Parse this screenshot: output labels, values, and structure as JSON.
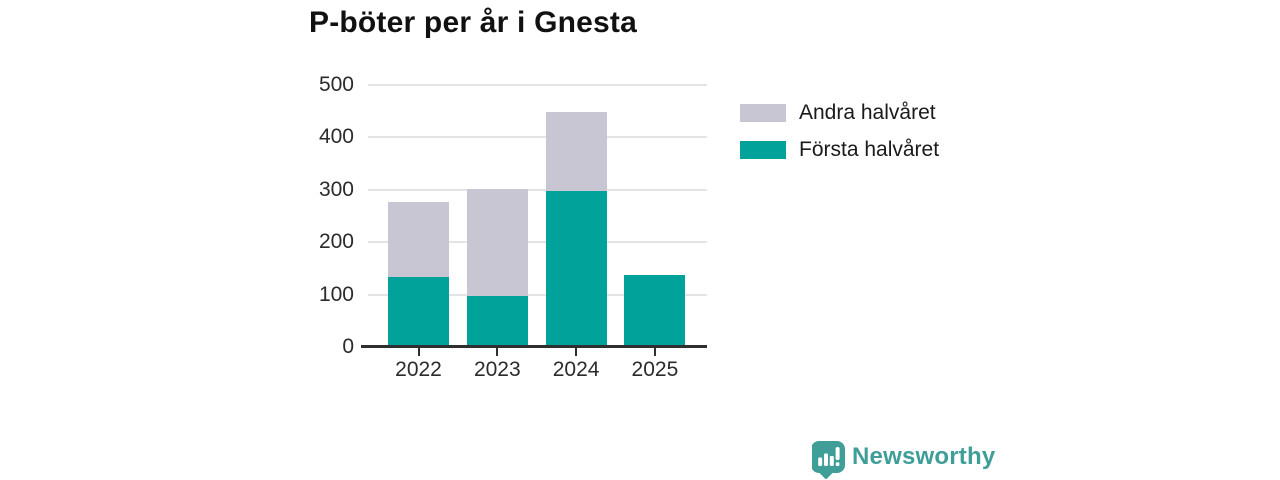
{
  "title": "P-böter per år i Gnesta",
  "chart_data": {
    "type": "bar",
    "stacked": true,
    "title": "P-böter per år i Gnesta",
    "categories": [
      "2022",
      "2023",
      "2024",
      "2025"
    ],
    "series": [
      {
        "name": "Första halvåret",
        "color": "#00a29a",
        "values": [
          130,
          93,
          294,
          133
        ]
      },
      {
        "name": "Andra halvåret",
        "color": "#c8c6d2",
        "values": [
          142,
          204,
          151,
          0
        ]
      }
    ],
    "xlabel": "",
    "ylabel": "",
    "ylim": [
      0,
      500
    ],
    "yticks": [
      0,
      100,
      200,
      300,
      400,
      500
    ],
    "grid": true,
    "legend_position": "right"
  },
  "legend": {
    "items": [
      {
        "label": "Andra halvåret",
        "color": "#c8c6d2",
        "icon": "legend-swatch-gray"
      },
      {
        "label": "Första halvåret",
        "color": "#00a29a",
        "icon": "legend-swatch-teal"
      }
    ]
  },
  "colors": {
    "first_half": "#00a29a",
    "second_half": "#c8c6d2",
    "gridline": "#e3e3e8",
    "axis": "#2f2f2f",
    "text": "#2b2b2b",
    "title": "#111111",
    "brand": "#3f9e97"
  },
  "branding": {
    "name": "Newsworthy",
    "icon": "bar-chart-bubble-icon"
  }
}
